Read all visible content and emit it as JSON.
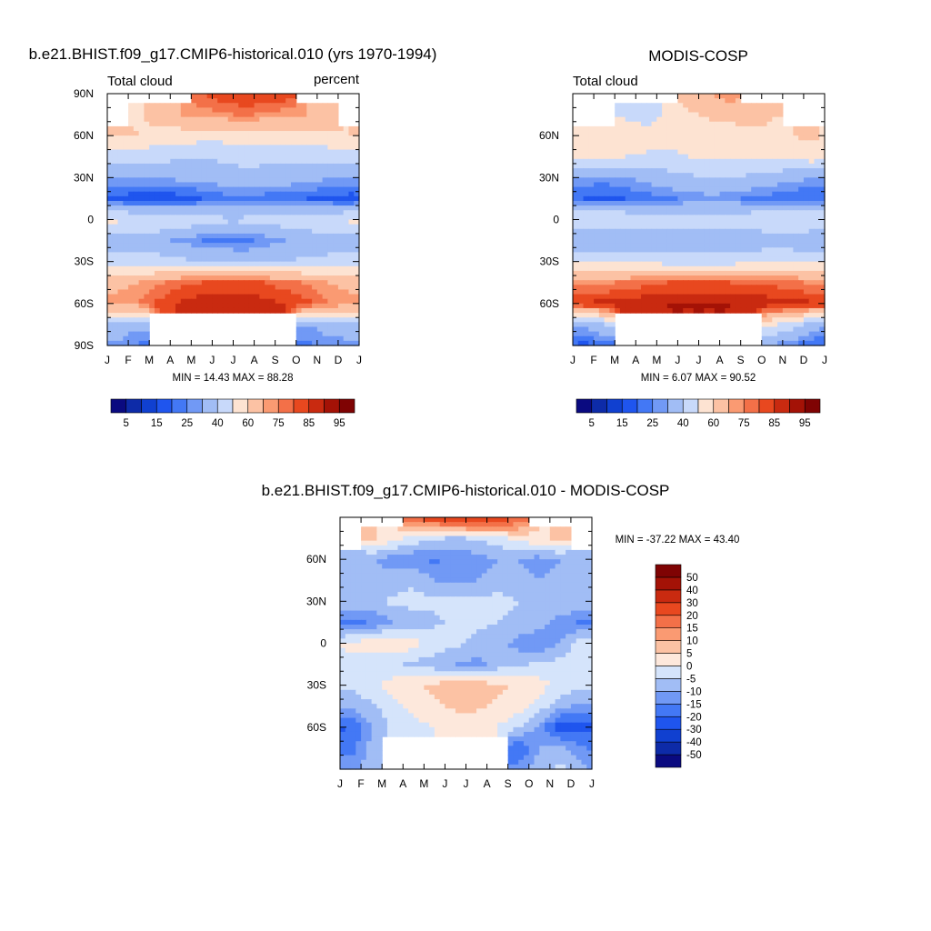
{
  "chart_data": [
    {
      "type": "heatmap",
      "title": "b.e21.BHIST.f09_g17.CMIP6-historical.010 (yrs 1970-1994)",
      "left_label": "Total cloud",
      "right_label": "percent",
      "stats": "MIN =  14.43 MAX =  88.28",
      "x_tick_labels": [
        "J",
        "F",
        "M",
        "A",
        "M",
        "J",
        "J",
        "A",
        "S",
        "O",
        "N",
        "D",
        "J"
      ],
      "y_tick_labels": [
        "90N",
        "60N",
        "30N",
        "0",
        "30S",
        "60S",
        "90S"
      ],
      "y_tick_values": [
        90,
        60,
        30,
        0,
        -30,
        -60,
        -90
      ],
      "ylim": [
        -90,
        90
      ],
      "x_months": 12,
      "field": {
        "lat": [
          90,
          75,
          60,
          45,
          30,
          15,
          0,
          -15,
          -30,
          -45,
          -60,
          -75,
          -90
        ],
        "values": [
          [
            null,
            null,
            null,
            null,
            80,
            84,
            86,
            86,
            84,
            null,
            null,
            null
          ],
          [
            null,
            58,
            66,
            70,
            72,
            74,
            76,
            74,
            72,
            70,
            64,
            null
          ],
          [
            62,
            60,
            56,
            55,
            54,
            54,
            55,
            55,
            55,
            56,
            58,
            60
          ],
          [
            45,
            44,
            43,
            42,
            41,
            42,
            44,
            43,
            42,
            42,
            44,
            45
          ],
          [
            30,
            30,
            31,
            32,
            33,
            35,
            36,
            36,
            35,
            33,
            31,
            30
          ],
          [
            18,
            16,
            15,
            17,
            20,
            22,
            23,
            22,
            21,
            20,
            18,
            17
          ],
          [
            52,
            51,
            50,
            48,
            45,
            42,
            42,
            44,
            46,
            48,
            50,
            52
          ],
          [
            34,
            33,
            32,
            28,
            25,
            24,
            24,
            26,
            30,
            33,
            34,
            34
          ],
          [
            44,
            44,
            44,
            42,
            40,
            38,
            37,
            38,
            40,
            42,
            43,
            44
          ],
          [
            68,
            70,
            74,
            78,
            80,
            81,
            81,
            80,
            77,
            74,
            70,
            68
          ],
          [
            72,
            75,
            82,
            86,
            88,
            88,
            88,
            87,
            85,
            82,
            76,
            72
          ],
          [
            36,
            32,
            null,
            null,
            null,
            null,
            null,
            null,
            null,
            30,
            34,
            36
          ],
          [
            28,
            24,
            null,
            null,
            null,
            null,
            null,
            null,
            null,
            24,
            26,
            28
          ]
        ]
      },
      "colorbar": {
        "orientation": "horizontal",
        "tick_labels": [
          "5",
          "15",
          "25",
          "40",
          "60",
          "75",
          "85",
          "95"
        ],
        "levels": [
          5,
          10,
          15,
          20,
          25,
          30,
          40,
          50,
          60,
          70,
          75,
          80,
          85,
          90,
          95
        ],
        "colors": [
          "#0a0a80",
          "#0d2ba8",
          "#1040d0",
          "#1f55ee",
          "#4378f5",
          "#7199f5",
          "#a1bdf5",
          "#c8d9fa",
          "#fde3d2",
          "#fcc2a4",
          "#fa9a72",
          "#f37048",
          "#e8481f",
          "#c92a10",
          "#a41206",
          "#7f0303"
        ]
      }
    },
    {
      "type": "heatmap",
      "title": "MODIS-COSP",
      "left_label": "Total cloud",
      "stats": "MIN =   6.07 MAX =  90.52",
      "x_tick_labels": [
        "J",
        "F",
        "M",
        "A",
        "M",
        "J",
        "J",
        "A",
        "S",
        "O",
        "N",
        "D",
        "J"
      ],
      "y_tick_labels": [
        "60N",
        "30N",
        "0",
        "30S",
        "60S"
      ],
      "y_tick_values": [
        60,
        30,
        0,
        -30,
        -60
      ],
      "ylim": [
        -90,
        90
      ],
      "x_months": 12,
      "field": {
        "lat": [
          90,
          75,
          60,
          45,
          30,
          15,
          0,
          -15,
          -30,
          -45,
          -60,
          -75,
          -90
        ],
        "values": [
          [
            null,
            null,
            null,
            null,
            null,
            66,
            70,
            74,
            null,
            null,
            null,
            null
          ],
          [
            null,
            null,
            48,
            44,
            52,
            58,
            62,
            64,
            66,
            60,
            null,
            null
          ],
          [
            54,
            56,
            58,
            56,
            54,
            52,
            52,
            54,
            56,
            58,
            60,
            62
          ],
          [
            52,
            52,
            50,
            48,
            48,
            50,
            52,
            50,
            50,
            52,
            54,
            56
          ],
          [
            28,
            28,
            30,
            33,
            36,
            38,
            40,
            40,
            38,
            35,
            32,
            30
          ],
          [
            20,
            18,
            20,
            22,
            24,
            26,
            28,
            26,
            24,
            22,
            20,
            20
          ],
          [
            52,
            52,
            50,
            48,
            46,
            45,
            46,
            46,
            48,
            50,
            52,
            52
          ],
          [
            30,
            30,
            30,
            32,
            33,
            32,
            32,
            32,
            32,
            33,
            32,
            30
          ],
          [
            50,
            48,
            48,
            48,
            46,
            46,
            45,
            46,
            48,
            50,
            50,
            50
          ],
          [
            72,
            74,
            76,
            78,
            80,
            80,
            80,
            80,
            79,
            78,
            76,
            74
          ],
          [
            86,
            87,
            88,
            89,
            90,
            90,
            90,
            90,
            89,
            88,
            87,
            86
          ],
          [
            30,
            40,
            null,
            null,
            null,
            null,
            null,
            null,
            null,
            52,
            46,
            34
          ],
          [
            18,
            22,
            null,
            null,
            null,
            null,
            null,
            null,
            null,
            28,
            24,
            20
          ]
        ]
      },
      "colorbar": {
        "orientation": "horizontal",
        "tick_labels": [
          "5",
          "15",
          "25",
          "40",
          "60",
          "75",
          "85",
          "95"
        ],
        "levels": [
          5,
          10,
          15,
          20,
          25,
          30,
          40,
          50,
          60,
          70,
          75,
          80,
          85,
          90,
          95
        ],
        "colors": [
          "#0a0a80",
          "#0d2ba8",
          "#1040d0",
          "#1f55ee",
          "#4378f5",
          "#7199f5",
          "#a1bdf5",
          "#c8d9fa",
          "#fde3d2",
          "#fcc2a4",
          "#fa9a72",
          "#f37048",
          "#e8481f",
          "#c92a10",
          "#a41206",
          "#7f0303"
        ]
      }
    },
    {
      "type": "heatmap",
      "title": "b.e21.BHIST.f09_g17.CMIP6-historical.010 - MODIS-COSP",
      "stats": "MIN = -37.22 MAX =  43.40",
      "x_tick_labels": [
        "J",
        "F",
        "M",
        "A",
        "M",
        "J",
        "J",
        "A",
        "S",
        "O",
        "N",
        "D",
        "J"
      ],
      "y_tick_labels": [
        "60N",
        "30N",
        "0",
        "30S",
        "60S"
      ],
      "y_tick_values": [
        60,
        30,
        0,
        -30,
        -60
      ],
      "ylim": [
        -90,
        90
      ],
      "x_months": 12,
      "field": {
        "lat": [
          90,
          75,
          60,
          45,
          30,
          15,
          0,
          -15,
          -30,
          -45,
          -60,
          -75,
          -90
        ],
        "values": [
          [
            null,
            null,
            null,
            22,
            24,
            28,
            30,
            26,
            20,
            null,
            null,
            null
          ],
          [
            null,
            6,
            2,
            -2,
            -4,
            -6,
            -4,
            -2,
            2,
            4,
            6,
            null
          ],
          [
            -8,
            -10,
            -12,
            -14,
            -16,
            -14,
            -12,
            -10,
            -10,
            -12,
            -10,
            -8
          ],
          [
            -6,
            -8,
            -8,
            -6,
            -10,
            -12,
            -10,
            -8,
            -9,
            -10,
            -8,
            -6
          ],
          [
            -5,
            -6,
            -4,
            -3,
            -4,
            -2,
            -4,
            -3,
            -5,
            -6,
            -5,
            -5
          ],
          [
            -18,
            -14,
            -10,
            -8,
            -6,
            -4,
            -4,
            -5,
            -6,
            -8,
            -12,
            -16
          ],
          [
            2,
            2,
            4,
            2,
            -2,
            -4,
            -6,
            -8,
            -12,
            -14,
            -10,
            -2
          ],
          [
            -3,
            -2,
            -4,
            -6,
            -8,
            -10,
            -12,
            -8,
            -6,
            -4,
            -3,
            -3
          ],
          [
            -4,
            -2,
            2,
            4,
            6,
            8,
            8,
            6,
            4,
            2,
            -2,
            -4
          ],
          [
            -8,
            -6,
            -2,
            2,
            4,
            6,
            6,
            4,
            2,
            -2,
            -8,
            -12
          ],
          [
            -20,
            -10,
            -4,
            -2,
            0,
            2,
            2,
            0,
            -4,
            -12,
            -24,
            -22
          ],
          [
            -18,
            -8,
            null,
            null,
            null,
            null,
            null,
            null,
            -20,
            -10,
            -8,
            -14
          ],
          [
            -12,
            -6,
            null,
            null,
            null,
            null,
            null,
            null,
            -14,
            -6,
            -4,
            -8
          ]
        ]
      },
      "colorbar": {
        "orientation": "vertical",
        "tick_labels": [
          "50",
          "40",
          "30",
          "20",
          "15",
          "10",
          "5",
          "0",
          "-5",
          "-10",
          "-15",
          "-20",
          "-30",
          "-40",
          "-50"
        ],
        "levels": [
          -50,
          -40,
          -30,
          -20,
          -15,
          -10,
          -5,
          0,
          5,
          10,
          15,
          20,
          30,
          40,
          50
        ],
        "colors": [
          "#0a0a80",
          "#0d2ba8",
          "#1040d0",
          "#1f55ee",
          "#4378f5",
          "#7199f5",
          "#a1bdf5",
          "#d5e4fb",
          "#fde8dc",
          "#fcc2a4",
          "#fa9a72",
          "#f37048",
          "#e8481f",
          "#c92a10",
          "#a41206",
          "#7f0303"
        ]
      }
    }
  ]
}
